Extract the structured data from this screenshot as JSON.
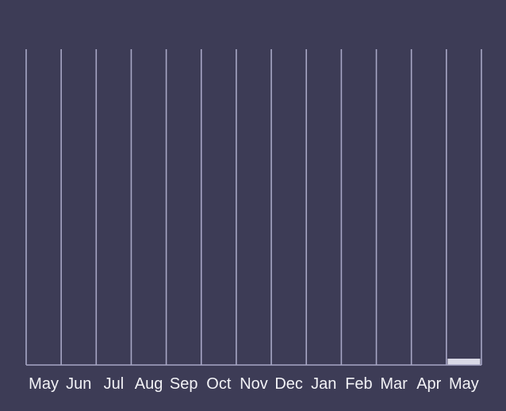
{
  "colors": {
    "background": "#3d3c56",
    "grid": "#a8a7c6",
    "bar": "#d9d9e6",
    "text": "#f2f2f6"
  },
  "chart_data": {
    "type": "bar",
    "title": "",
    "xlabel": "",
    "ylabel": "",
    "categories": [
      "May",
      "Jun",
      "Jul",
      "Aug",
      "Sep",
      "Oct",
      "Nov",
      "Dec",
      "Jan",
      "Feb",
      "Mar",
      "Apr",
      "May"
    ],
    "values": [
      0,
      0,
      0,
      0,
      0,
      0,
      0,
      0,
      0,
      0,
      0,
      0,
      2
    ],
    "ylim": [
      0,
      100
    ],
    "grid": true,
    "legend": "none"
  }
}
